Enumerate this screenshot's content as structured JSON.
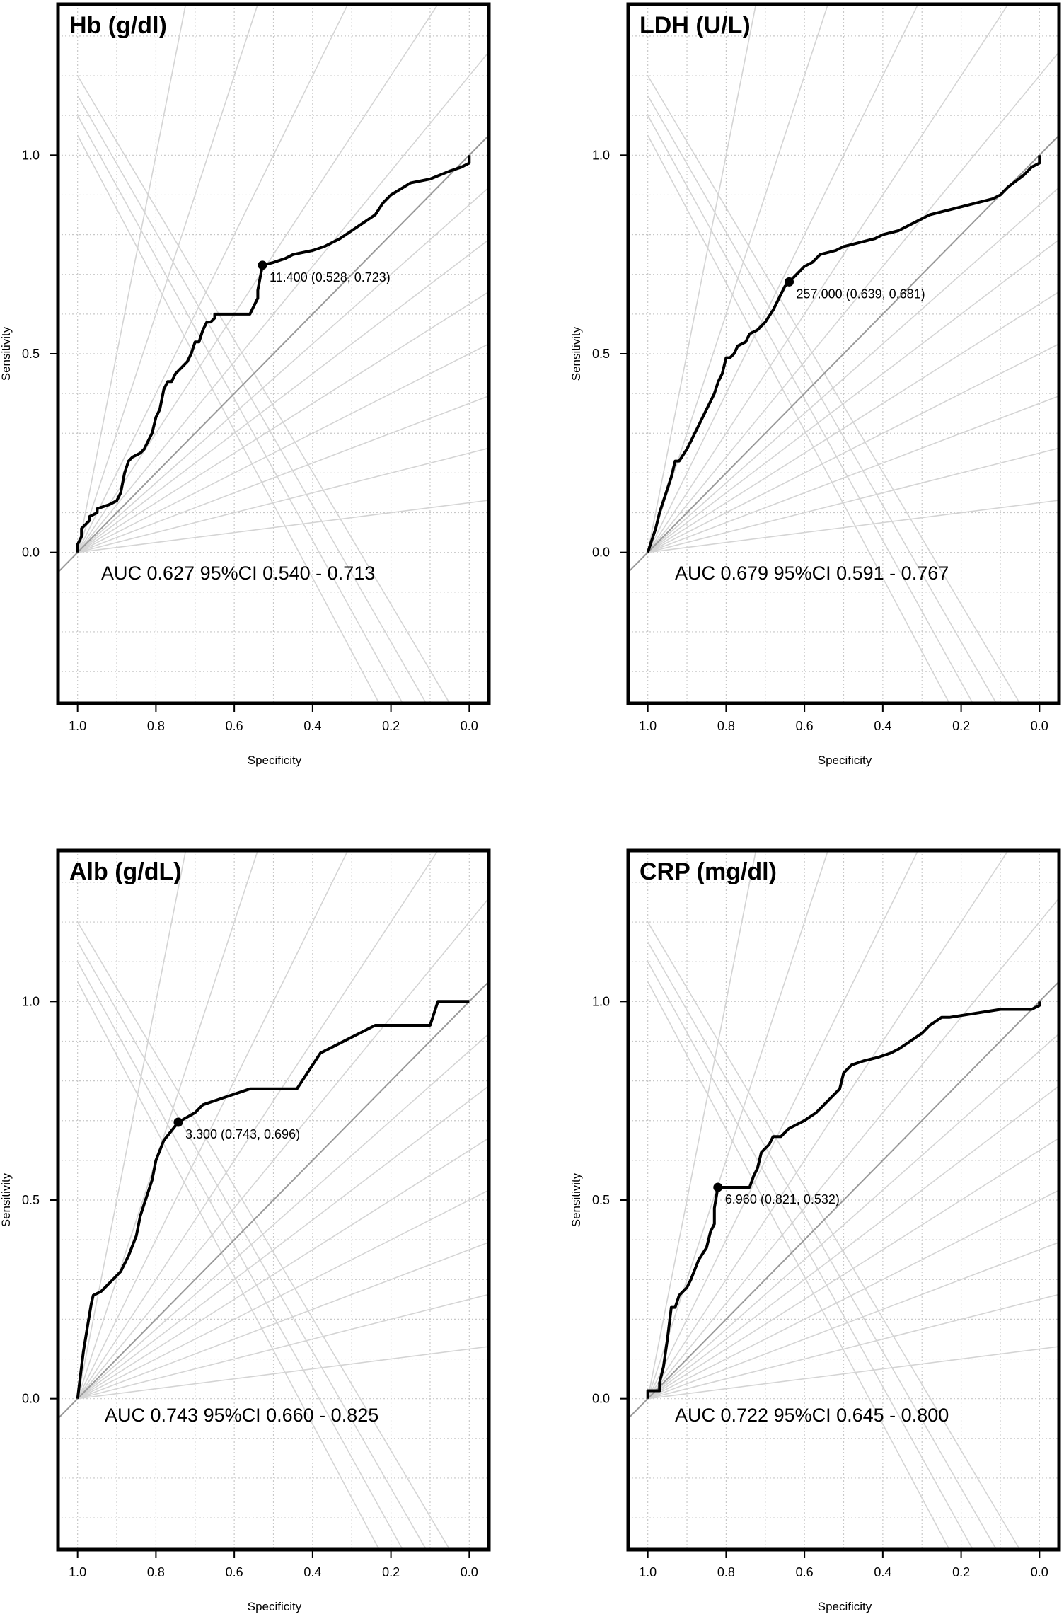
{
  "colors": {
    "curve": "#000000",
    "diagonal": "#9a9a9a",
    "grid": "#c8c8c8",
    "iso_lines": "#d4d4d4",
    "frame": "#000000",
    "text": "#000000"
  },
  "chart_data": [
    {
      "type": "line",
      "title": "Hb (g/dl)",
      "xlabel": "Specificity",
      "ylabel": "Sensitivity",
      "x_reversed": true,
      "xlim": [
        1.05,
        -0.05
      ],
      "ylim": [
        -0.38,
        1.38
      ],
      "x_ticks": [
        "1.0",
        "0.8",
        "0.6",
        "0.4",
        "0.2",
        "0.0"
      ],
      "x_tick_values": [
        1.0,
        0.8,
        0.6,
        0.4,
        0.2,
        0.0
      ],
      "y_ticks": [
        "0.0",
        "0.5",
        "1.0"
      ],
      "y_tick_values": [
        0.0,
        0.5,
        1.0
      ],
      "grid": true,
      "diagonal": true,
      "auc_text": "AUC 0.627 95%CI 0.540 - 0.713",
      "threshold": {
        "label": "11.400 (0.528, 0.723)",
        "specificity": 0.528,
        "sensitivity": 0.723
      },
      "roc": {
        "specificity": [
          1.0,
          1.0,
          0.99,
          0.99,
          0.97,
          0.97,
          0.95,
          0.95,
          0.92,
          0.9,
          0.89,
          0.88,
          0.87,
          0.86,
          0.84,
          0.83,
          0.82,
          0.81,
          0.8,
          0.79,
          0.78,
          0.77,
          0.76,
          0.75,
          0.74,
          0.73,
          0.72,
          0.71,
          0.7,
          0.69,
          0.68,
          0.67,
          0.66,
          0.65,
          0.65,
          0.56,
          0.55,
          0.54,
          0.54,
          0.528,
          0.5,
          0.47,
          0.45,
          0.4,
          0.37,
          0.33,
          0.3,
          0.27,
          0.24,
          0.22,
          0.2,
          0.15,
          0.1,
          0.05,
          0.02,
          0.0,
          0.0
        ],
        "sensitivity": [
          0.0,
          0.02,
          0.04,
          0.06,
          0.08,
          0.09,
          0.1,
          0.11,
          0.12,
          0.13,
          0.15,
          0.2,
          0.23,
          0.24,
          0.25,
          0.26,
          0.28,
          0.3,
          0.34,
          0.36,
          0.41,
          0.43,
          0.43,
          0.45,
          0.46,
          0.47,
          0.48,
          0.5,
          0.53,
          0.53,
          0.56,
          0.58,
          0.58,
          0.59,
          0.6,
          0.6,
          0.62,
          0.64,
          0.66,
          0.723,
          0.73,
          0.74,
          0.75,
          0.76,
          0.77,
          0.79,
          0.81,
          0.83,
          0.85,
          0.88,
          0.9,
          0.93,
          0.94,
          0.96,
          0.97,
          0.98,
          1.0
        ]
      }
    },
    {
      "type": "line",
      "title": "LDH (U/L)",
      "xlabel": "Specificity",
      "ylabel": "Sensitivity",
      "x_reversed": true,
      "xlim": [
        1.05,
        -0.05
      ],
      "ylim": [
        -0.38,
        1.38
      ],
      "x_ticks": [
        "1.0",
        "0.8",
        "0.6",
        "0.4",
        "0.2",
        "0.0"
      ],
      "x_tick_values": [
        1.0,
        0.8,
        0.6,
        0.4,
        0.2,
        0.0
      ],
      "y_ticks": [
        "0.0",
        "0.5",
        "1.0"
      ],
      "y_tick_values": [
        0.0,
        0.5,
        1.0
      ],
      "grid": true,
      "diagonal": true,
      "auc_text": "AUC 0.679 95%CI 0.591 - 0.767",
      "threshold": {
        "label": "257.000 (0.639, 0.681)",
        "specificity": 0.639,
        "sensitivity": 0.681
      },
      "roc": {
        "specificity": [
          1.0,
          0.99,
          0.98,
          0.97,
          0.96,
          0.95,
          0.94,
          0.93,
          0.92,
          0.9,
          0.89,
          0.88,
          0.87,
          0.86,
          0.85,
          0.84,
          0.83,
          0.82,
          0.81,
          0.8,
          0.79,
          0.78,
          0.77,
          0.75,
          0.74,
          0.72,
          0.7,
          0.68,
          0.67,
          0.66,
          0.65,
          0.64,
          0.639,
          0.62,
          0.6,
          0.58,
          0.56,
          0.52,
          0.5,
          0.46,
          0.42,
          0.4,
          0.36,
          0.32,
          0.28,
          0.24,
          0.16,
          0.12,
          0.1,
          0.08,
          0.04,
          0.02,
          0.0,
          0.0
        ],
        "sensitivity": [
          0.0,
          0.03,
          0.06,
          0.1,
          0.13,
          0.16,
          0.19,
          0.23,
          0.23,
          0.26,
          0.28,
          0.3,
          0.32,
          0.34,
          0.36,
          0.38,
          0.4,
          0.43,
          0.45,
          0.49,
          0.49,
          0.5,
          0.52,
          0.53,
          0.55,
          0.56,
          0.58,
          0.61,
          0.63,
          0.65,
          0.67,
          0.68,
          0.681,
          0.7,
          0.72,
          0.73,
          0.75,
          0.76,
          0.77,
          0.78,
          0.79,
          0.8,
          0.81,
          0.83,
          0.85,
          0.86,
          0.88,
          0.89,
          0.9,
          0.92,
          0.95,
          0.97,
          0.98,
          1.0
        ]
      }
    },
    {
      "type": "line",
      "title": "Alb (g/dL)",
      "xlabel": "Specificity",
      "ylabel": "Sensitivity",
      "x_reversed": true,
      "xlim": [
        1.05,
        -0.05
      ],
      "ylim": [
        -0.38,
        1.38
      ],
      "x_ticks": [
        "1.0",
        "0.8",
        "0.6",
        "0.4",
        "0.2",
        "0.0"
      ],
      "x_tick_values": [
        1.0,
        0.8,
        0.6,
        0.4,
        0.2,
        0.0
      ],
      "y_ticks": [
        "0.0",
        "0.5",
        "1.0"
      ],
      "y_tick_values": [
        0.0,
        0.5,
        1.0
      ],
      "grid": true,
      "diagonal": true,
      "auc_text": "AUC 0.743 95%CI 0.660 - 0.825",
      "threshold": {
        "label": "3.300 (0.743, 0.696)",
        "specificity": 0.743,
        "sensitivity": 0.696
      },
      "roc": {
        "specificity": [
          1.0,
          0.99,
          0.985,
          0.98,
          0.975,
          0.97,
          0.965,
          0.96,
          0.94,
          0.92,
          0.89,
          0.87,
          0.85,
          0.84,
          0.83,
          0.81,
          0.8,
          0.78,
          0.743,
          0.7,
          0.68,
          0.62,
          0.56,
          0.52,
          0.44,
          0.38,
          0.3,
          0.24,
          0.14,
          0.1,
          0.08,
          0.05,
          0.0,
          0.0
        ],
        "sensitivity": [
          0.0,
          0.08,
          0.12,
          0.15,
          0.18,
          0.21,
          0.24,
          0.26,
          0.27,
          0.29,
          0.32,
          0.36,
          0.41,
          0.46,
          0.49,
          0.55,
          0.6,
          0.65,
          0.696,
          0.72,
          0.74,
          0.76,
          0.78,
          0.78,
          0.78,
          0.87,
          0.91,
          0.94,
          0.94,
          0.94,
          1.0,
          1.0,
          1.0,
          1.0
        ]
      }
    },
    {
      "type": "line",
      "title": "CRP (mg/dl)",
      "xlabel": "Specificity",
      "ylabel": "Sensitivity",
      "x_reversed": true,
      "xlim": [
        1.05,
        -0.05
      ],
      "ylim": [
        -0.38,
        1.38
      ],
      "x_ticks": [
        "1.0",
        "0.8",
        "0.6",
        "0.4",
        "0.2",
        "0.0"
      ],
      "x_tick_values": [
        1.0,
        0.8,
        0.6,
        0.4,
        0.2,
        0.0
      ],
      "y_ticks": [
        "0.0",
        "0.5",
        "1.0"
      ],
      "y_tick_values": [
        0.0,
        0.5,
        1.0
      ],
      "grid": true,
      "diagonal": true,
      "auc_text": "AUC 0.722 95%CI 0.645 - 0.800",
      "threshold": {
        "label": "6.960 (0.821, 0.532)",
        "specificity": 0.821,
        "sensitivity": 0.532
      },
      "roc": {
        "specificity": [
          1.0,
          1.0,
          0.97,
          0.97,
          0.96,
          0.95,
          0.94,
          0.93,
          0.92,
          0.9,
          0.89,
          0.87,
          0.85,
          0.84,
          0.83,
          0.83,
          0.821,
          0.74,
          0.73,
          0.72,
          0.71,
          0.69,
          0.68,
          0.66,
          0.64,
          0.6,
          0.57,
          0.55,
          0.53,
          0.51,
          0.5,
          0.48,
          0.45,
          0.41,
          0.38,
          0.36,
          0.33,
          0.3,
          0.28,
          0.25,
          0.23,
          0.1,
          0.05,
          0.02,
          0.0,
          0.0
        ],
        "sensitivity": [
          0.0,
          0.02,
          0.02,
          0.04,
          0.08,
          0.15,
          0.23,
          0.23,
          0.26,
          0.28,
          0.3,
          0.35,
          0.38,
          0.42,
          0.44,
          0.48,
          0.532,
          0.532,
          0.56,
          0.58,
          0.62,
          0.64,
          0.66,
          0.66,
          0.68,
          0.7,
          0.72,
          0.74,
          0.76,
          0.78,
          0.82,
          0.84,
          0.85,
          0.86,
          0.87,
          0.88,
          0.9,
          0.92,
          0.94,
          0.96,
          0.96,
          0.98,
          0.98,
          0.98,
          0.99,
          1.0
        ]
      }
    }
  ]
}
